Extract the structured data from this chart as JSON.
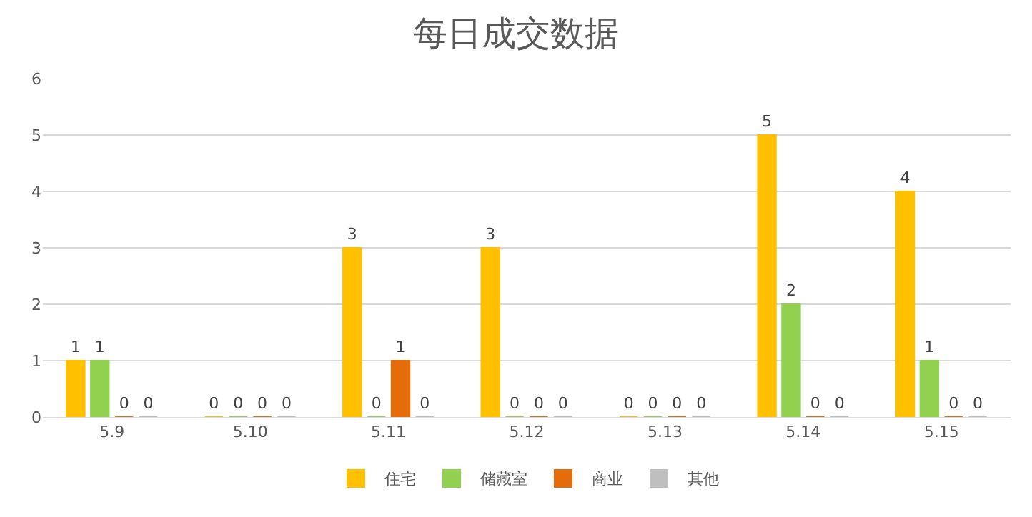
{
  "chart_data": {
    "type": "bar",
    "title": "每日成交数据",
    "categories": [
      "5.9",
      "5.10",
      "5.11",
      "5.12",
      "5.13",
      "5.14",
      "5.15"
    ],
    "series": [
      {
        "name": "住宅",
        "color": "#ffc000",
        "values": [
          1,
          0,
          3,
          3,
          0,
          5,
          4
        ]
      },
      {
        "name": "储藏室",
        "color": "#92d050",
        "values": [
          1,
          0,
          0,
          0,
          0,
          2,
          1
        ]
      },
      {
        "name": "商业",
        "color": "#e46c0a",
        "values": [
          0,
          0,
          1,
          0,
          0,
          0,
          0
        ]
      },
      {
        "name": "其他",
        "color": "#bfbfbf",
        "values": [
          0,
          0,
          0,
          0,
          0,
          0,
          0
        ]
      }
    ],
    "ylim": [
      0,
      6
    ],
    "yticks": [
      0,
      1,
      2,
      3,
      4,
      5,
      6
    ],
    "grid": "y",
    "legend": "bottom",
    "data_labels": true
  }
}
